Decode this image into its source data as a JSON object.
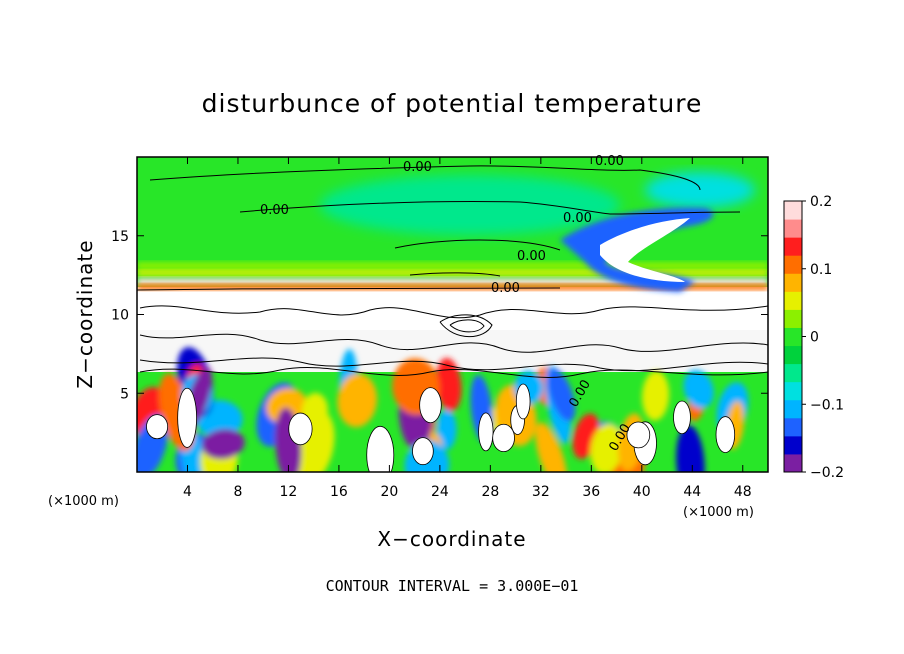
{
  "chart_data": {
    "type": "heatmap",
    "title": "disturbunce of potential temperature",
    "xlabel": "X−coordinate",
    "ylabel": "Z−coordinate",
    "x_unit": "(×1000 m)",
    "z_unit": "(×1000 m)",
    "xlim": [
      0,
      50
    ],
    "ylim": [
      0,
      20
    ],
    "x_ticks": [
      4,
      8,
      12,
      16,
      20,
      24,
      28,
      32,
      36,
      40,
      44,
      48
    ],
    "x_tick_labels": [
      "4",
      "8",
      "12",
      "16",
      "20",
      "24",
      "28",
      "32",
      "36",
      "40",
      "44",
      "48"
    ],
    "y_ticks": [
      5,
      10,
      15
    ],
    "y_tick_labels": [
      "5",
      "10",
      "15"
    ],
    "colorbar": {
      "range": [
        -0.2,
        0.2
      ],
      "ticks": [
        0.2,
        0.1,
        0,
        -0.1,
        -0.2
      ],
      "tick_labels": [
        "0.2",
        "0.1",
        "0",
        "−0.1",
        "−0.2"
      ],
      "colors": [
        "#7b1fa2",
        "#0000cc",
        "#1e62ff",
        "#00b4ff",
        "#00e0e0",
        "#00e88c",
        "#00d23c",
        "#28e628",
        "#8cf000",
        "#e6f000",
        "#ffb400",
        "#ff6e00",
        "#ff1e1e",
        "#ff8c8c",
        "#ffdcdc"
      ]
    },
    "contour_labels": [
      "0.00",
      "0.00",
      "0.00",
      "0.00",
      "0.00",
      "0.00",
      "0.00",
      "0.00"
    ],
    "contour_interval_text": "CONTOUR INTERVAL = 3.000E−01",
    "grid": false
  }
}
